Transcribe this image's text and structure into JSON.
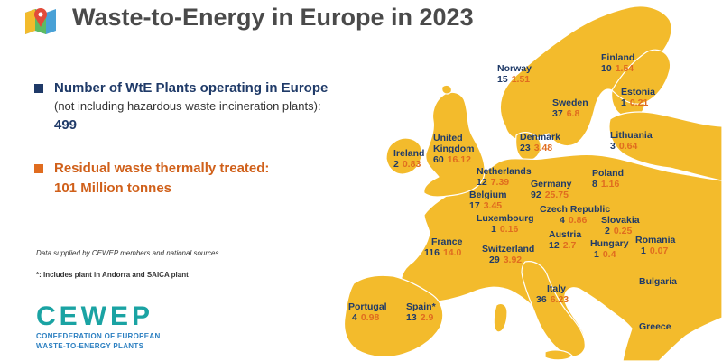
{
  "title": "Waste-to-Energy in Europe in 2023",
  "colors": {
    "land": "#f3bb2c",
    "land_dark": "#e2a81e",
    "title": "#4a4a4a",
    "navy": "#1f3a68",
    "orange": "#e06c1f",
    "cewep_blue": "#2b7fc1",
    "cewep_teal": "#1aa3a3"
  },
  "stats": {
    "plants": {
      "heading": "Number of WtE Plants operating in Europe",
      "sub": "(not including hazardous waste incineration plants):",
      "value": "499"
    },
    "residual": {
      "heading": "Residual waste thermally treated:",
      "value": "101 Million tonnes"
    }
  },
  "notes": {
    "source": "Data supplied by CEWEP members and national sources",
    "footnote": "*: Includes plant in Andorra and SAICA plant"
  },
  "logo": {
    "name": "CEWEP",
    "line1": "CONFEDERATION OF EUROPEAN",
    "line2": "WASTE-TO-ENERGY PLANTS"
  },
  "countries": [
    {
      "name": "Norway",
      "plants": "15",
      "tonnes": "1.51"
    },
    {
      "name": "Finland",
      "plants": "10",
      "tonnes": "1.54"
    },
    {
      "name": "Sweden",
      "plants": "37",
      "tonnes": "6.8"
    },
    {
      "name": "Estonia",
      "plants": "1",
      "tonnes": "0.21"
    },
    {
      "name": "Denmark",
      "plants": "23",
      "tonnes": "3.48"
    },
    {
      "name": "Lithuania",
      "plants": "3",
      "tonnes": "0.64"
    },
    {
      "name": "United Kingdom",
      "plants": "60",
      "tonnes": "16.12"
    },
    {
      "name": "Ireland",
      "plants": "2",
      "tonnes": "0.83"
    },
    {
      "name": "Netherlands",
      "plants": "12",
      "tonnes": "7.39"
    },
    {
      "name": "Germany",
      "plants": "92",
      "tonnes": "25.75"
    },
    {
      "name": "Poland",
      "plants": "8",
      "tonnes": "1.16"
    },
    {
      "name": "Belgium",
      "plants": "17",
      "tonnes": "3.45"
    },
    {
      "name": "Czech Republic",
      "plants": "4",
      "tonnes": "0.86"
    },
    {
      "name": "Luxembourg",
      "plants": "1",
      "tonnes": "0.16"
    },
    {
      "name": "Slovakia",
      "plants": "2",
      "tonnes": "0.25"
    },
    {
      "name": "France",
      "plants": "116",
      "tonnes": "14.0"
    },
    {
      "name": "Austria",
      "plants": "12",
      "tonnes": "2.7"
    },
    {
      "name": "Hungary",
      "plants": "1",
      "tonnes": "0.4"
    },
    {
      "name": "Romania",
      "plants": "1",
      "tonnes": "0.07"
    },
    {
      "name": "Switzerland",
      "plants": "29",
      "tonnes": "3.92"
    },
    {
      "name": "Portugal",
      "plants": "4",
      "tonnes": "0.98"
    },
    {
      "name": "Spain*",
      "plants": "13",
      "tonnes": "2.9"
    },
    {
      "name": "Italy",
      "plants": "36",
      "tonnes": "6.23"
    }
  ],
  "unlabeled_countries": [
    "Bulgaria",
    "Greece"
  ]
}
